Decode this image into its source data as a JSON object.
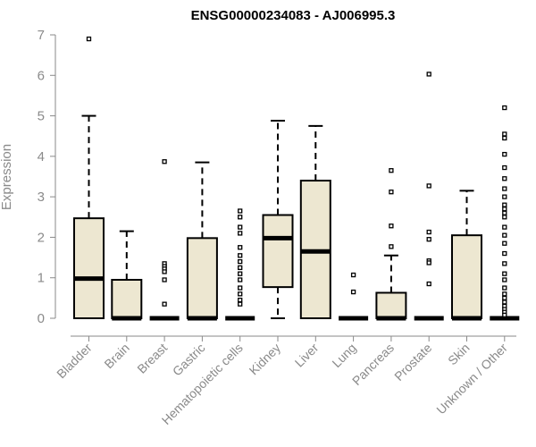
{
  "chart_data": {
    "type": "box",
    "title": "ENSG00000234083 - AJ006995.3",
    "xlabel": "",
    "ylabel": "Expression",
    "ylim": [
      0,
      7
    ],
    "yticks": [
      "0",
      "1",
      "2",
      "3",
      "4",
      "5",
      "6",
      "7"
    ],
    "grid": false,
    "box_fill": "#ede7d1",
    "box_stroke": "#000000",
    "categories": [
      "Bladder",
      "Brain",
      "Breast",
      "Gastric",
      "Hematopoietic cells",
      "Kidney",
      "Liver",
      "Lung",
      "Pancreas",
      "Prostate",
      "Skin",
      "Unknown / Other"
    ],
    "boxes": [
      {
        "q1": 0,
        "median": 0.98,
        "q3": 2.47,
        "whisker_low": 0,
        "whisker_high": 5.0,
        "outliers": [
          6.9
        ]
      },
      {
        "q1": 0,
        "median": 0,
        "q3": 0.95,
        "whisker_low": 0,
        "whisker_high": 2.15,
        "outliers": []
      },
      {
        "q1": 0,
        "median": 0,
        "q3": 0,
        "whisker_low": 0,
        "whisker_high": 0,
        "outliers": [
          3.87,
          1.35,
          1.28,
          1.22,
          1.15,
          0.95,
          0.35
        ]
      },
      {
        "q1": 0,
        "median": 0,
        "q3": 1.98,
        "whisker_low": 0,
        "whisker_high": 3.85,
        "outliers": []
      },
      {
        "q1": 0,
        "median": 0,
        "q3": 0,
        "whisker_low": 0,
        "whisker_high": 0,
        "outliers": [
          2.65,
          2.5,
          2.25,
          2.1,
          1.75,
          1.55,
          1.4,
          1.25,
          1.1,
          0.95,
          0.75,
          0.6,
          0.45,
          0.35
        ]
      },
      {
        "q1": 0.77,
        "median": 1.98,
        "q3": 2.55,
        "whisker_low": 0,
        "whisker_high": 4.88,
        "outliers": []
      },
      {
        "q1": 0,
        "median": 1.65,
        "q3": 3.4,
        "whisker_low": 0,
        "whisker_high": 4.75,
        "outliers": []
      },
      {
        "q1": 0,
        "median": 0,
        "q3": 0,
        "whisker_low": 0,
        "whisker_high": 0,
        "outliers": [
          1.07,
          0.65
        ]
      },
      {
        "q1": 0,
        "median": 0,
        "q3": 0.63,
        "whisker_low": 0,
        "whisker_high": 1.55,
        "outliers": [
          3.65,
          3.12,
          2.28,
          1.77
        ]
      },
      {
        "q1": 0,
        "median": 0,
        "q3": 0,
        "whisker_low": 0,
        "whisker_high": 0,
        "outliers": [
          6.03,
          3.27,
          2.13,
          1.95,
          1.42,
          1.37,
          0.85
        ]
      },
      {
        "q1": 0,
        "median": 0,
        "q3": 2.05,
        "whisker_low": 0,
        "whisker_high": 3.15,
        "outliers": []
      },
      {
        "q1": 0,
        "median": 0,
        "q3": 0,
        "whisker_low": 0,
        "whisker_high": 0,
        "outliers": [
          5.2,
          4.55,
          4.45,
          4.05,
          3.72,
          3.45,
          3.2,
          3.0,
          2.8,
          2.7,
          2.6,
          2.5,
          2.25,
          2.05,
          1.85,
          1.6,
          1.35,
          1.1,
          0.95,
          0.75,
          0.6,
          0.5,
          0.4,
          0.3,
          0.22,
          0.15,
          0.08
        ]
      }
    ]
  }
}
